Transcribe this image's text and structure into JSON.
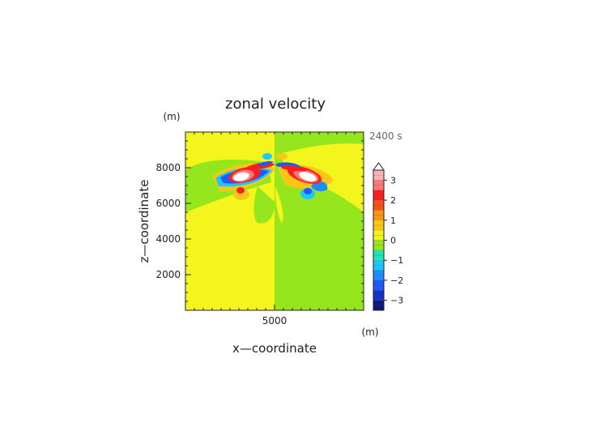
{
  "chart_data": {
    "type": "heatmap",
    "title": "zonal velocity",
    "time_label": "2400 s",
    "xlabel": "x—coordinate",
    "ylabel": "z—coordinate",
    "x_unit": "(m)",
    "y_unit": "(m)",
    "xlim": [
      0,
      10000
    ],
    "ylim": [
      0,
      10000
    ],
    "x_ticks": [
      {
        "value": 5000,
        "label": "5000"
      }
    ],
    "y_ticks": [
      {
        "value": 2000,
        "label": "2000"
      },
      {
        "value": 4000,
        "label": "4000"
      },
      {
        "value": 6000,
        "label": "6000"
      },
      {
        "value": 8000,
        "label": "8000"
      }
    ],
    "colorbar": {
      "min": -3.5,
      "max": 3.5,
      "step": 0.25,
      "extend_max": true,
      "tick_values": [
        3,
        2,
        1,
        0,
        -1,
        -2,
        -3
      ],
      "tick_labels": [
        "3",
        "2",
        "1",
        "0",
        "−1",
        "−2",
        "−3"
      ],
      "colors": [
        {
          "from": -3.5,
          "to": -3.0,
          "color": "#0a1a7a"
        },
        {
          "from": -3.0,
          "to": -2.5,
          "color": "#1432c8"
        },
        {
          "from": -2.5,
          "to": -2.0,
          "color": "#1e5aff"
        },
        {
          "from": -2.0,
          "to": -1.5,
          "color": "#1e8cff"
        },
        {
          "from": -1.5,
          "to": -1.0,
          "color": "#1ec8ff"
        },
        {
          "from": -1.0,
          "to": -0.5,
          "color": "#1ee6b4"
        },
        {
          "from": -0.5,
          "to": 0.0,
          "color": "#96e61e"
        },
        {
          "from": 0.0,
          "to": 0.5,
          "color": "#f5f51e"
        },
        {
          "from": 0.5,
          "to": 1.0,
          "color": "#fac814"
        },
        {
          "from": 1.0,
          "to": 1.5,
          "color": "#fa9614"
        },
        {
          "from": 1.5,
          "to": 2.0,
          "color": "#fa5014"
        },
        {
          "from": 2.0,
          "to": 2.5,
          "color": "#ff1e1e"
        },
        {
          "from": 2.5,
          "to": 3.0,
          "color": "#ff7878"
        },
        {
          "from": 3.0,
          "to": 3.5,
          "color": "#ffb4b4"
        }
      ],
      "extend_color": "#ffffff"
    },
    "features": [
      {
        "name": "background-left",
        "x": [
          0,
          5000
        ],
        "z": [
          0,
          10000
        ],
        "value": 0.25
      },
      {
        "name": "background-right",
        "x": [
          5000,
          10000
        ],
        "z": [
          0,
          10000
        ],
        "value": -0.25
      },
      {
        "name": "left-vortex-core",
        "x": 3200,
        "z": 7300,
        "value": 3.6
      },
      {
        "name": "right-vortex-core",
        "x": 6800,
        "z": 7300,
        "value": 3.6
      },
      {
        "name": "left-jet-negative",
        "x": 2600,
        "z": 7400,
        "value": -2.2
      },
      {
        "name": "right-jet-negative",
        "x": 7300,
        "z": 7200,
        "value": -2.2
      },
      {
        "name": "left-lower-blob",
        "x": 3100,
        "z": 6800,
        "value": 2.2
      },
      {
        "name": "right-lower-blob",
        "x": 6800,
        "z": 6600,
        "value": -2.0
      }
    ]
  }
}
